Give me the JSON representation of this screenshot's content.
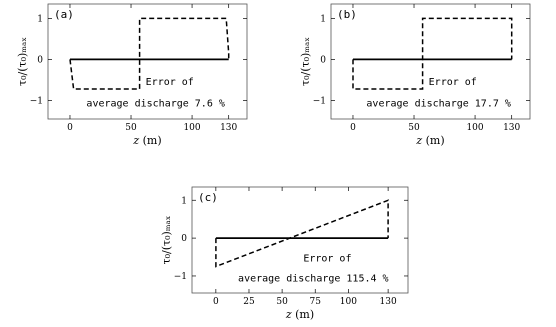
{
  "chart_data": [
    {
      "type": "line",
      "panel_label": "(a)",
      "xlabel": "z (m)",
      "ylabel": "τ₀/(τ₀)ₘₐₓ",
      "xlim": [
        -18,
        145
      ],
      "ylim": [
        -1.45,
        1.35
      ],
      "xticks": [
        0,
        50,
        100,
        130
      ],
      "yticks": [
        -1,
        0,
        1
      ],
      "annotation": [
        "Error of",
        "average discharge  7.6 %"
      ],
      "series": [
        {
          "style": "solid",
          "x": [
            0,
            130
          ],
          "y": [
            0,
            0
          ]
        },
        {
          "style": "dashed",
          "x": [
            0,
            3,
            57,
            57,
            128,
            130,
            130
          ],
          "y": [
            0,
            -0.72,
            -0.72,
            1.0,
            1.0,
            0.15,
            0
          ]
        }
      ]
    },
    {
      "type": "line",
      "panel_label": "(b)",
      "xlabel": "z (m)",
      "ylabel": "τ₀/(τ₀)ₘₐₓ",
      "xlim": [
        -18,
        145
      ],
      "ylim": [
        -1.45,
        1.35
      ],
      "xticks": [
        0,
        50,
        100,
        130
      ],
      "yticks": [
        -1,
        0,
        1
      ],
      "annotation": [
        "Error of",
        "average discharge  17.7 %"
      ],
      "series": [
        {
          "style": "solid",
          "x": [
            0,
            130
          ],
          "y": [
            0,
            0
          ]
        },
        {
          "style": "dashed",
          "x": [
            0,
            0,
            57,
            57,
            130,
            130
          ],
          "y": [
            0,
            -0.72,
            -0.72,
            1.0,
            1.0,
            0
          ]
        }
      ]
    },
    {
      "type": "line",
      "panel_label": "(c)",
      "xlabel": "z (m)",
      "ylabel": "τ₀/(τ₀)ₘₐₓ",
      "xlim": [
        -18,
        145
      ],
      "ylim": [
        -1.45,
        1.35
      ],
      "xticks": [
        0,
        25,
        50,
        75,
        100,
        130
      ],
      "yticks": [
        -1,
        0,
        1
      ],
      "annotation": [
        "Error of",
        "average discharge  115.4 %"
      ],
      "series": [
        {
          "style": "solid",
          "x": [
            0,
            130
          ],
          "y": [
            0,
            0
          ]
        },
        {
          "style": "dashed",
          "x": [
            0,
            0,
            130,
            130
          ],
          "y": [
            0,
            -0.75,
            1.0,
            0
          ]
        }
      ]
    }
  ]
}
